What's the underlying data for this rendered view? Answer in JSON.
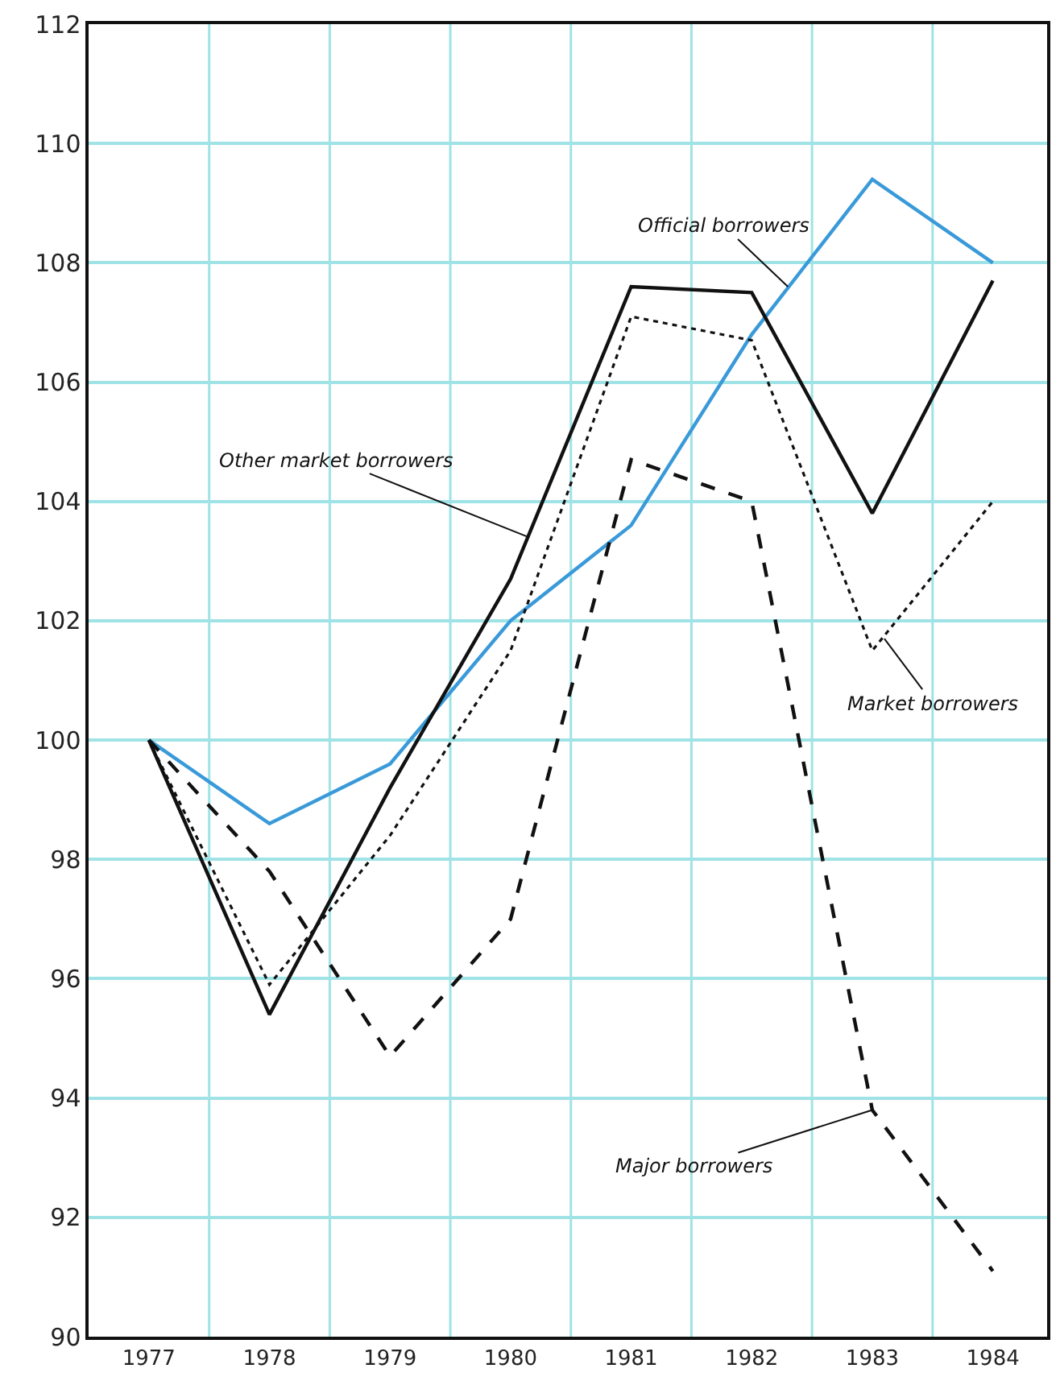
{
  "chart_data": {
    "type": "line",
    "x": [
      1977,
      1978,
      1979,
      1980,
      1981,
      1982,
      1983,
      1984
    ],
    "series": [
      {
        "color": "#3a9ad9",
        "line_style": "solid",
        "values": [
          100,
          98.6,
          99.6,
          102.0,
          103.6,
          106.8,
          109.4,
          108.0
        ]
      },
      {
        "color": "#111111",
        "line_style": "solid",
        "values": [
          100,
          95.4,
          99.2,
          102.7,
          107.6,
          107.5,
          103.8,
          107.7
        ]
      },
      {
        "color": "#111111",
        "line_style": "dotted",
        "values": [
          100,
          95.9,
          98.4,
          101.5,
          107.1,
          106.7,
          101.5,
          104.0
        ]
      },
      {
        "color": "#111111",
        "line_style": "dashed",
        "values": [
          100,
          97.8,
          94.7,
          97.0,
          104.7,
          104.0,
          93.8,
          91.1
        ]
      }
    ],
    "annotations": [
      {
        "text": "Official borrowers",
        "x": 1982.3,
        "y": 107.6
      },
      {
        "text": "Other market borrowers",
        "x": 1980.15,
        "y": 103.4
      },
      {
        "text": "Market borrowers",
        "x": 1983.1,
        "y": 101.7
      },
      {
        "text": "Major borrowers",
        "x": 1983.0,
        "y": 93.8
      }
    ],
    "xlim": [
      1976.5,
      1984.45
    ],
    "xticks": [
      1977,
      1978,
      1979,
      1980,
      1981,
      1982,
      1983,
      1984,
      {
        "value": 1977.5,
        "label": null
      },
      {
        "value": 1978.5,
        "label": null
      },
      {
        "value": 1979.5,
        "label": null
      },
      {
        "value": 1980.5,
        "label": null
      },
      {
        "value": 1981.5,
        "label": null
      },
      {
        "value": 1982.5,
        "label": null
      },
      {
        "value": 1983.5,
        "label": null
      }
    ],
    "ylim": [
      90,
      112
    ],
    "yticks": [
      90,
      92,
      94,
      96,
      98,
      100,
      102,
      104,
      106,
      108,
      110,
      112
    ],
    "grid": true
  }
}
